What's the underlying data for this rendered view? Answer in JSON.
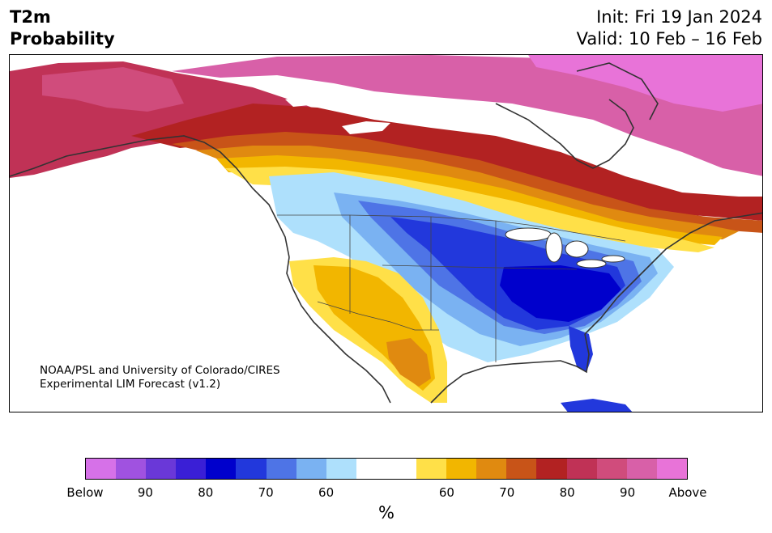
{
  "header": {
    "title_line1": "T2m",
    "title_line2": "Probability",
    "init": "Init: Fri 19 Jan 2024",
    "valid": "Valid: 10 Feb – 16 Feb"
  },
  "credit": {
    "line1": "NOAA/PSL and University of Colorado/CIRES",
    "line2": "Experimental LIM Forecast (v1.2)"
  },
  "colorbar": {
    "colors": [
      "#d671e8",
      "#a052e0",
      "#6a38d8",
      "#3a1fd6",
      "#0000cc",
      "#2238dc",
      "#4e74e6",
      "#7ab2f2",
      "#aee0fc",
      "#ffffff",
      "#ffffff",
      "#ffe048",
      "#f2b600",
      "#e08a10",
      "#c85418",
      "#b22222",
      "#c03256",
      "#d04c7c",
      "#d860a8",
      "#e873d8"
    ],
    "ticks": [
      {
        "label": "Below",
        "frac": 0.0
      },
      {
        "label": "90",
        "frac": 0.1
      },
      {
        "label": "80",
        "frac": 0.2
      },
      {
        "label": "70",
        "frac": 0.3
      },
      {
        "label": "60",
        "frac": 0.4
      },
      {
        "label": "60",
        "frac": 0.6
      },
      {
        "label": "70",
        "frac": 0.7
      },
      {
        "label": "80",
        "frac": 0.8
      },
      {
        "label": "90",
        "frac": 0.9
      },
      {
        "label": "Above",
        "frac": 1.0
      }
    ],
    "unit": "%"
  },
  "map": {
    "background_color": "#ffffff",
    "coastline_color": "#333333"
  }
}
